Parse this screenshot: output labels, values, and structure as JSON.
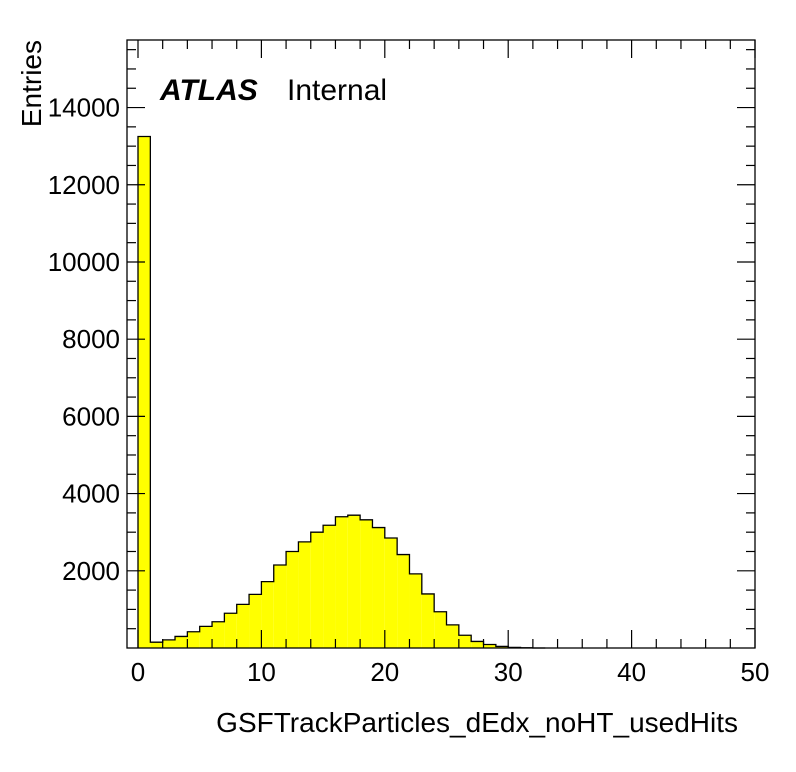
{
  "chart_data": {
    "type": "bar",
    "xlabel": "GSFTrackParticles_dEdx_noHT_usedHits",
    "ylabel": "Entries",
    "xlim": [
      0,
      50
    ],
    "ylim": [
      0,
      15750
    ],
    "x_ticks": [
      0,
      10,
      20,
      30,
      40,
      50
    ],
    "y_ticks": [
      2000,
      4000,
      6000,
      8000,
      10000,
      12000,
      14000
    ],
    "annotation": {
      "experiment": "ATLAS",
      "status": "Internal"
    },
    "bin_width": 1,
    "bin_edges_start": [
      0,
      1,
      2,
      3,
      4,
      5,
      6,
      7,
      8,
      9,
      10,
      11,
      12,
      13,
      14,
      15,
      16,
      17,
      18,
      19,
      20,
      21,
      22,
      23,
      24,
      25,
      26,
      27,
      28,
      29,
      30,
      31,
      32,
      33,
      34,
      35,
      36,
      37,
      38,
      39,
      40,
      41,
      42,
      43,
      44,
      45,
      46,
      47,
      48,
      49
    ],
    "values": [
      13250,
      150,
      210,
      300,
      420,
      560,
      680,
      900,
      1130,
      1390,
      1720,
      2150,
      2500,
      2750,
      3000,
      3180,
      3400,
      3440,
      3320,
      3120,
      2850,
      2420,
      1920,
      1400,
      940,
      600,
      330,
      170,
      90,
      40,
      15,
      5,
      0,
      0,
      0,
      0,
      0,
      0,
      0,
      0,
      0,
      0,
      0,
      0,
      0,
      0,
      0,
      0,
      0,
      0
    ],
    "fill_color": "#ffff00",
    "line_color": "#000000",
    "grid": false,
    "legend": "none"
  }
}
